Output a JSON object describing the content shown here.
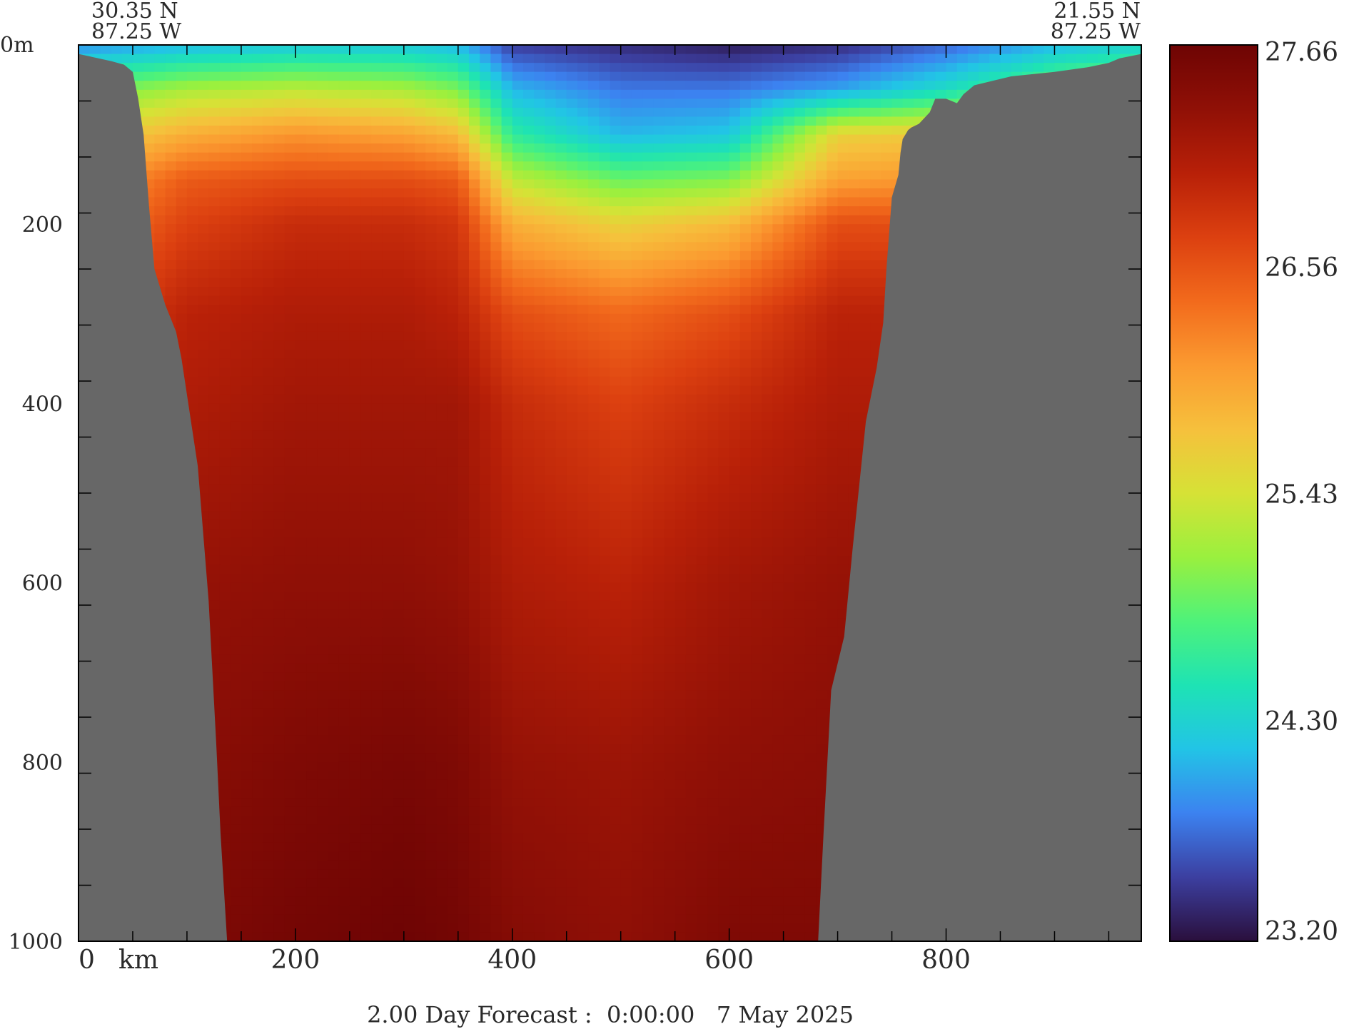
{
  "chart_data": {
    "type": "heatmap",
    "title": "2.00 Day Forecast :  0:00:00   7 May 2025",
    "start_point": {
      "lat": "30.35 N",
      "lon": "87.25 W"
    },
    "end_point": {
      "lat": "21.55 N",
      "lon": "87.25 W"
    },
    "x_axis": {
      "unit_label": "km",
      "tick_labels": [
        "0",
        "200",
        "400",
        "600",
        "800"
      ],
      "range": [
        0,
        980
      ]
    },
    "y_axis": {
      "top_label": "0m",
      "tick_labels": [
        "200",
        "400",
        "600",
        "800",
        "1000"
      ],
      "range": [
        0,
        1000
      ],
      "inverted": true
    },
    "colorbar": {
      "min": 23.2,
      "max": 27.66,
      "tick_labels": [
        "27.66",
        "26.56",
        "25.43",
        "24.30",
        "23.20"
      ],
      "colors": [
        "#2a0f3c",
        "#3c3fa0",
        "#3c82f0",
        "#22c4e6",
        "#1ee3b4",
        "#4ef27a",
        "#9af03e",
        "#d6e236",
        "#f6c03c",
        "#fb9a30",
        "#f26a1c",
        "#dc4010",
        "#b82008",
        "#901006",
        "#6e0404"
      ]
    },
    "land_color": "#676767",
    "bathymetry": {
      "distance_km": [
        0,
        30,
        42,
        50,
        55,
        60,
        65,
        70,
        80,
        90,
        95,
        110,
        120,
        127,
        131,
        137,
        682,
        687,
        694,
        700,
        706,
        714,
        720,
        726,
        736,
        742,
        745,
        750,
        756,
        758,
        760,
        765,
        768,
        775,
        785,
        790,
        800,
        810,
        816,
        826,
        860,
        900,
        930,
        950,
        960,
        980
      ],
      "depth_m": [
        10,
        18,
        22,
        30,
        60,
        100,
        180,
        250,
        290,
        320,
        350,
        470,
        620,
        780,
        880,
        1000,
        1000,
        880,
        720,
        690,
        660,
        560,
        490,
        420,
        360,
        310,
        250,
        170,
        145,
        120,
        105,
        95,
        92,
        88,
        75,
        60,
        60,
        65,
        55,
        45,
        35,
        30,
        25,
        20,
        15,
        10
      ]
    },
    "temperature_field": {
      "distance_km": [
        0,
        100,
        200,
        300,
        350,
        400,
        500,
        600,
        700,
        800,
        900,
        980
      ],
      "depth_m": [
        0,
        50,
        100,
        150,
        200,
        300,
        400,
        600,
        800,
        1000
      ],
      "values_degC": [
        [
          23.9,
          24.1,
          24.2,
          24.2,
          24.1,
          23.5,
          23.4,
          23.3,
          23.4,
          23.7,
          24.1,
          24.3
        ],
        [
          24.9,
          25.2,
          25.3,
          25.2,
          25.0,
          24.1,
          23.8,
          23.8,
          24.0,
          24.4,
          25.0,
          25.2
        ],
        [
          25.5,
          25.9,
          26.1,
          26.0,
          25.8,
          24.6,
          24.1,
          24.2,
          25.6,
          25.7,
          25.8,
          25.9
        ],
        [
          25.9,
          26.5,
          26.6,
          26.6,
          26.5,
          25.3,
          24.9,
          25.0,
          26.0,
          26.1,
          26.2,
          26.2
        ],
        [
          26.2,
          26.7,
          26.9,
          26.9,
          26.8,
          25.9,
          25.6,
          25.8,
          26.6,
          26.6,
          26.6,
          26.6
        ],
        [
          26.6,
          27.0,
          27.1,
          27.1,
          27.0,
          26.6,
          26.4,
          26.6,
          27.0,
          27.0,
          27.0,
          27.0
        ],
        [
          26.9,
          27.1,
          27.2,
          27.2,
          27.2,
          26.9,
          26.7,
          26.9,
          27.1,
          27.1,
          27.1,
          27.1
        ],
        [
          27.1,
          27.3,
          27.35,
          27.35,
          27.3,
          27.1,
          27.0,
          27.2,
          27.3,
          27.3,
          27.3,
          27.3
        ],
        [
          27.3,
          27.4,
          27.5,
          27.55,
          27.5,
          27.3,
          27.25,
          27.35,
          27.4,
          27.4,
          27.4,
          27.4
        ],
        [
          27.4,
          27.5,
          27.6,
          27.66,
          27.6,
          27.45,
          27.35,
          27.5,
          27.5,
          27.5,
          27.5,
          27.5
        ]
      ]
    }
  }
}
